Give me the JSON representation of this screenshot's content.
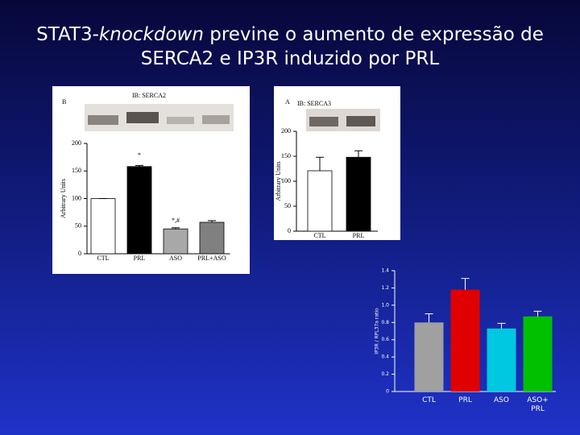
{
  "title": [
    "STAT3-",
    "knockdown",
    " previne o aumento de expressão de",
    "SERCA2 e IP3R induzido por PRL"
  ],
  "chart_data": [
    {
      "type": "bar",
      "panel_label": "B",
      "blot_label": "IB: SERCA2",
      "ylabel": "Arbitrary Units",
      "categories": [
        "CTL",
        "PRL",
        "ASO",
        "PRL+ASO"
      ],
      "values": [
        100,
        158,
        45,
        57
      ],
      "errors": [
        0,
        2,
        2,
        3
      ],
      "colors": [
        "#ffffff",
        "#000000",
        "#a8a8a8",
        "#808080"
      ],
      "annotations": [
        "*",
        "*,#"
      ],
      "ylim": [
        0,
        200
      ],
      "yticks": [
        0,
        50,
        100,
        150,
        200
      ]
    },
    {
      "type": "bar",
      "panel_label": "A",
      "blot_label": "IB: SERCA3",
      "ylabel": "Arbitrary Units",
      "categories": [
        "CTL",
        "PRL"
      ],
      "values": [
        121,
        148
      ],
      "errors": [
        27,
        13
      ],
      "colors": [
        "#ffffff",
        "#000000"
      ],
      "ylim": [
        0,
        200
      ],
      "yticks": [
        0,
        50,
        100,
        150,
        200
      ]
    },
    {
      "type": "bar",
      "ylabel": "IP3R / RPL37a ratio",
      "categories": [
        "CTL",
        "PRL",
        "ASO",
        "ASO+\nPRL"
      ],
      "values": [
        0.8,
        1.18,
        0.73,
        0.87
      ],
      "errors": [
        0.1,
        0.13,
        0.06,
        0.06
      ],
      "colors": [
        "#a0a0a0",
        "#e00000",
        "#00c8e0",
        "#00c000"
      ],
      "ylim": [
        0,
        1.4
      ],
      "yticks": [
        0,
        0.2,
        0.4,
        0.6,
        0.8,
        {
          "value": 1,
          "label": "1.0"
        },
        1.2,
        1.4
      ]
    }
  ]
}
